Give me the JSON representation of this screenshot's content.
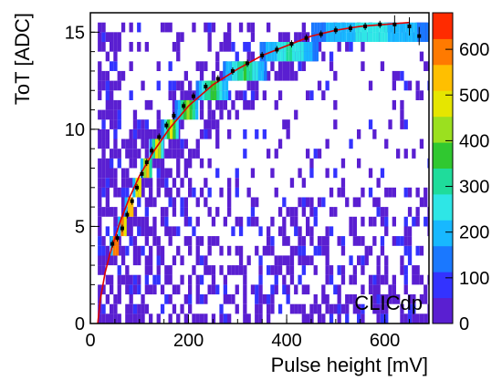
{
  "chart_data": {
    "type": "heatmap",
    "title": "",
    "xlabel": "Pulse height [mV]",
    "ylabel": "ToT [ADC]",
    "xlim": [
      0,
      690
    ],
    "ylim": [
      0,
      16
    ],
    "x_ticks": [
      0,
      200,
      400,
      600
    ],
    "y_ticks": [
      0,
      5,
      10,
      15
    ],
    "z_range": [
      0,
      680
    ],
    "z_ticks": [
      0,
      100,
      200,
      300,
      400,
      500,
      600
    ],
    "palette": [
      "#5a1fd1",
      "#3333ff",
      "#1a78ff",
      "#18b8ff",
      "#2ee6e6",
      "#1fdc9b",
      "#30c830",
      "#9be01f",
      "#e6e600",
      "#ffbf00",
      "#ff7a00",
      "#ff2b00"
    ],
    "annotation": "CLICdp",
    "band": [
      {
        "tot": 4,
        "x_from": 40,
        "x_to": 58
      },
      {
        "tot": 5,
        "x_from": 56,
        "x_to": 72
      },
      {
        "tot": 6,
        "x_from": 70,
        "x_to": 88
      },
      {
        "tot": 7,
        "x_from": 86,
        "x_to": 104
      },
      {
        "tot": 8,
        "x_from": 102,
        "x_to": 124
      },
      {
        "tot": 9,
        "x_from": 120,
        "x_to": 148
      },
      {
        "tot": 10,
        "x_from": 144,
        "x_to": 178
      },
      {
        "tot": 11,
        "x_from": 172,
        "x_to": 220
      },
      {
        "tot": 12,
        "x_from": 215,
        "x_to": 278
      },
      {
        "tot": 13,
        "x_from": 270,
        "x_to": 355
      },
      {
        "tot": 14,
        "x_from": 345,
        "x_to": 460
      },
      {
        "tot": 15,
        "x_from": 450,
        "x_to": 690
      }
    ],
    "profile_points": [
      [
        45,
        4.1
      ],
      [
        55,
        4.4
      ],
      [
        65,
        4.9
      ],
      [
        75,
        5.6
      ],
      [
        85,
        6.3
      ],
      [
        95,
        7.0
      ],
      [
        105,
        7.7
      ],
      [
        115,
        8.3
      ],
      [
        125,
        8.9
      ],
      [
        140,
        9.6
      ],
      [
        155,
        10.2
      ],
      [
        170,
        10.7
      ],
      [
        190,
        11.2
      ],
      [
        210,
        11.7
      ],
      [
        235,
        12.2
      ],
      [
        260,
        12.6
      ],
      [
        290,
        13.0
      ],
      [
        320,
        13.4
      ],
      [
        350,
        13.8
      ],
      [
        380,
        14.1
      ],
      [
        410,
        14.4
      ],
      [
        440,
        14.7
      ],
      [
        470,
        14.9
      ],
      [
        500,
        15.1
      ],
      [
        530,
        15.2
      ],
      [
        560,
        15.3
      ],
      [
        590,
        15.4
      ],
      [
        620,
        15.4
      ],
      [
        650,
        15.3
      ],
      [
        670,
        14.8
      ]
    ],
    "fit_curve": [
      [
        15,
        0
      ],
      [
        20,
        1.2
      ],
      [
        30,
        2.6
      ],
      [
        40,
        3.6
      ],
      [
        60,
        5.2
      ],
      [
        80,
        6.5
      ],
      [
        100,
        7.6
      ],
      [
        130,
        8.9
      ],
      [
        160,
        10.0
      ],
      [
        200,
        11.2
      ],
      [
        250,
        12.3
      ],
      [
        300,
        13.1
      ],
      [
        350,
        13.8
      ],
      [
        400,
        14.3
      ],
      [
        450,
        14.8
      ],
      [
        500,
        15.1
      ],
      [
        550,
        15.3
      ],
      [
        600,
        15.4
      ],
      [
        650,
        15.5
      ]
    ]
  }
}
